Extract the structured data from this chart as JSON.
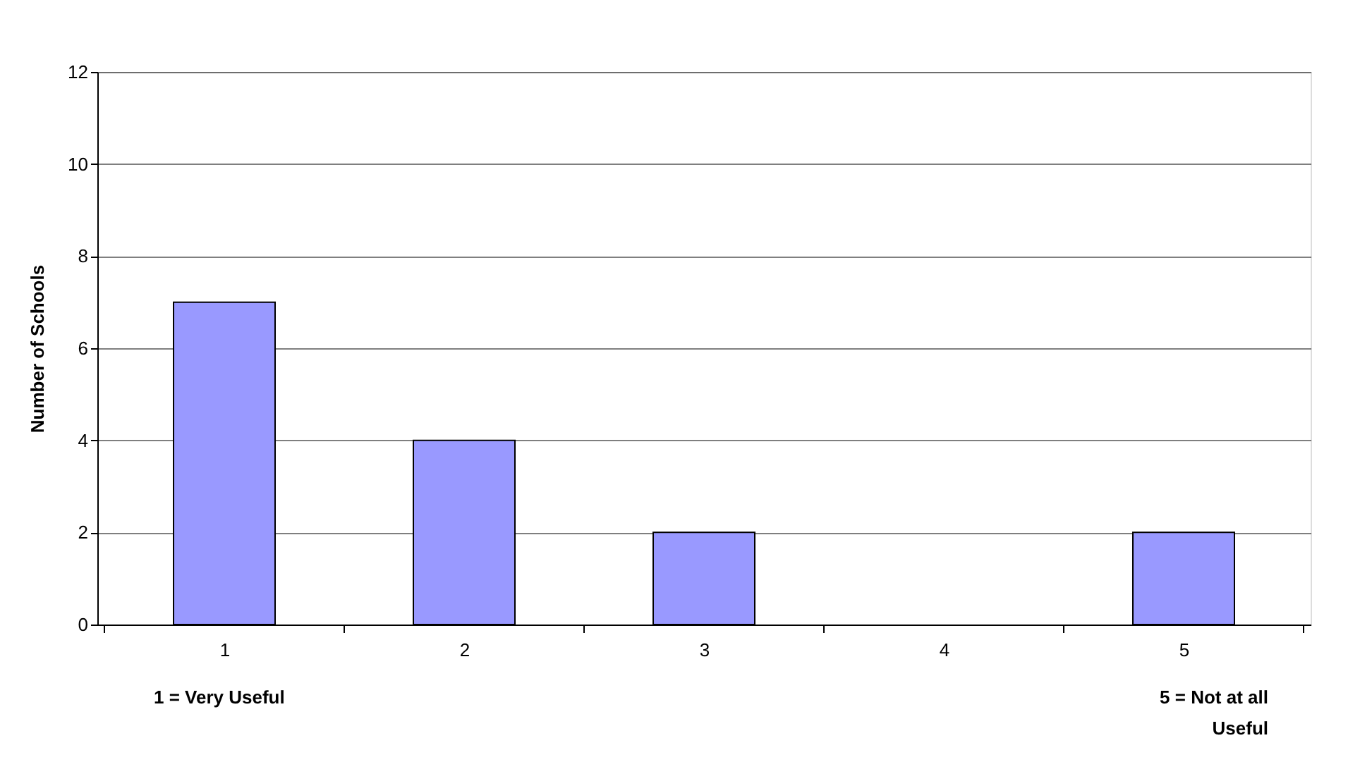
{
  "chart_data": {
    "type": "bar",
    "ylabel": "Number of Schools",
    "categories": [
      "1",
      "2",
      "3",
      "4",
      "5"
    ],
    "values": [
      7,
      4,
      2,
      0,
      2
    ],
    "color": "#9999ff",
    "ylim": [
      0,
      12
    ],
    "yticks": [
      0,
      2,
      4,
      6,
      8,
      10,
      12
    ],
    "grid": "y",
    "annotations": [
      "1 = Very Useful",
      "5 = Not at all\nUseful"
    ]
  }
}
